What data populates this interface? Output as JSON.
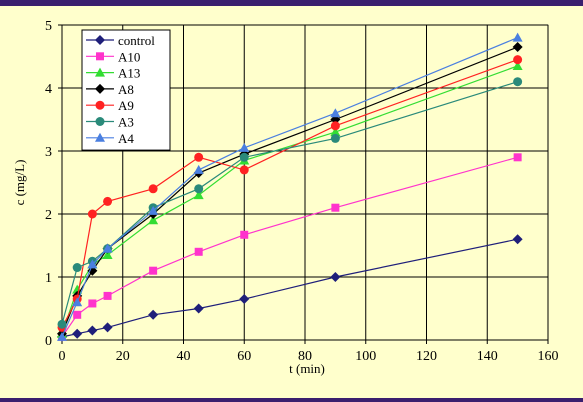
{
  "chart_data": {
    "type": "line",
    "xlabel": "t (min)",
    "ylabel": "c (mg/L)",
    "xlim": [
      0,
      160
    ],
    "ylim": [
      0,
      5
    ],
    "xticks": [
      0,
      20,
      40,
      60,
      80,
      100,
      120,
      140,
      160
    ],
    "yticks": [
      0,
      1,
      2,
      3,
      4,
      5
    ],
    "grid": true,
    "legend_position": "top-left",
    "series": [
      {
        "name": "control",
        "color": "#1f1f7a",
        "marker": "diamond",
        "x": [
          0,
          5,
          10,
          15,
          30,
          45,
          60,
          90,
          150
        ],
        "y": [
          0.05,
          0.1,
          0.15,
          0.2,
          0.4,
          0.5,
          0.65,
          1.0,
          1.6
        ]
      },
      {
        "name": "A10",
        "color": "#ff33cc",
        "marker": "square",
        "x": [
          0,
          5,
          10,
          15,
          30,
          45,
          60,
          90,
          150
        ],
        "y": [
          0.05,
          0.4,
          0.58,
          0.7,
          1.1,
          1.4,
          1.67,
          2.1,
          2.9
        ]
      },
      {
        "name": "A13",
        "color": "#33dd33",
        "marker": "triangle",
        "x": [
          0,
          5,
          10,
          15,
          30,
          45,
          60,
          90,
          150
        ],
        "y": [
          0.1,
          0.8,
          1.2,
          1.35,
          1.9,
          2.3,
          2.85,
          3.3,
          4.35
        ]
      },
      {
        "name": "A8",
        "color": "#000000",
        "marker": "diamond",
        "x": [
          0,
          5,
          10,
          15,
          30,
          45,
          60,
          90,
          150
        ],
        "y": [
          0.1,
          0.7,
          1.1,
          1.45,
          2.0,
          2.65,
          2.95,
          3.5,
          4.65
        ]
      },
      {
        "name": "A9",
        "color": "#ff2222",
        "marker": "circle",
        "x": [
          0,
          5,
          10,
          15,
          30,
          45,
          60,
          90,
          150
        ],
        "y": [
          0.2,
          0.65,
          2.0,
          2.2,
          2.4,
          2.9,
          2.7,
          3.4,
          4.45
        ]
      },
      {
        "name": "A3",
        "color": "#2a8a7a",
        "marker": "circle",
        "x": [
          0,
          5,
          10,
          15,
          30,
          45,
          60,
          90,
          150
        ],
        "y": [
          0.25,
          1.15,
          1.25,
          1.45,
          2.1,
          2.4,
          2.9,
          3.2,
          4.1
        ]
      },
      {
        "name": "A4",
        "color": "#4a7fe0",
        "marker": "triangle",
        "x": [
          0,
          5,
          10,
          15,
          30,
          45,
          60,
          90,
          150
        ],
        "y": [
          0.05,
          0.6,
          1.2,
          1.45,
          2.05,
          2.7,
          3.05,
          3.6,
          4.8
        ]
      }
    ]
  }
}
